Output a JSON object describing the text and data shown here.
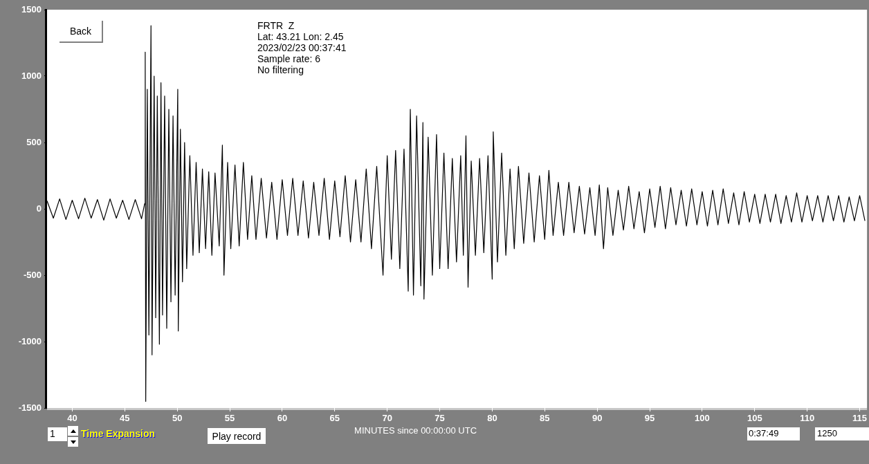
{
  "chart_data": {
    "type": "line",
    "title": "FRTR  Z",
    "xlabel": "MINUTES since 00:00:00 UTC",
    "annotations": [
      "Lat: 43.21 Lon: 2.45",
      "2023/02/23 00:37:41",
      "Sample rate: 6",
      "No filtering",
      "Back",
      "1",
      "Time Expansion",
      "Play record",
      "0:37:49",
      "1250"
    ],
    "xlim": [
      37.6,
      115.7
    ],
    "xticks": [
      40,
      45,
      50,
      55,
      60,
      65,
      70,
      75,
      80,
      85,
      90,
      95,
      100,
      105,
      110,
      115
    ],
    "ylim": [
      -1500,
      1500
    ],
    "yticks": [
      -1500,
      -1000,
      -500,
      0,
      500,
      1000,
      1500
    ],
    "grid": false,
    "legend": false,
    "marker": "none",
    "line_style": "solid",
    "series": [
      {
        "color": "#000000",
        "x": [
          37.6,
          38.2,
          38.8,
          39.4,
          40.0,
          40.6,
          41.2,
          41.8,
          42.4,
          43.0,
          43.6,
          44.2,
          44.8,
          45.4,
          46.0,
          46.6,
          46.9,
          46.95,
          47.0,
          47.15,
          47.3,
          47.5,
          47.6,
          47.8,
          47.95,
          48.1,
          48.3,
          48.45,
          48.6,
          48.8,
          49.0,
          49.2,
          49.4,
          49.6,
          49.8,
          50.05,
          50.1,
          50.3,
          50.5,
          50.7,
          50.9,
          51.2,
          51.5,
          51.8,
          52.1,
          52.4,
          52.7,
          53.0,
          53.3,
          53.6,
          54.0,
          54.3,
          54.45,
          54.8,
          55.1,
          55.5,
          55.9,
          56.3,
          56.7,
          57.1,
          57.5,
          58.0,
          58.5,
          59.0,
          59.5,
          60.0,
          60.5,
          61.0,
          61.5,
          62.0,
          62.5,
          63.0,
          63.5,
          64.0,
          64.5,
          65.0,
          65.5,
          66.0,
          66.5,
          67.0,
          67.5,
          68.0,
          68.5,
          69.0,
          69.6,
          70.0,
          70.4,
          70.8,
          71.2,
          71.6,
          72.0,
          72.2,
          72.5,
          72.8,
          73.2,
          73.4,
          73.5,
          73.9,
          74.3,
          74.7,
          75.0,
          75.4,
          75.8,
          76.2,
          76.6,
          77.0,
          77.25,
          77.5,
          77.7,
          78.0,
          78.4,
          78.8,
          79.2,
          79.6,
          80.0,
          80.1,
          80.5,
          80.9,
          81.3,
          81.7,
          82.1,
          82.5,
          83.0,
          83.5,
          84.0,
          84.5,
          85.0,
          85.4,
          85.8,
          86.3,
          86.8,
          87.3,
          87.8,
          88.3,
          88.8,
          89.3,
          89.8,
          90.2,
          90.6,
          91.0,
          91.5,
          92.0,
          92.5,
          93.0,
          93.5,
          94.0,
          94.5,
          95.0,
          95.5,
          96.0,
          96.5,
          97.0,
          97.5,
          98.0,
          98.5,
          99.0,
          99.5,
          100.0,
          100.5,
          101.0,
          101.5,
          102.0,
          102.5,
          103.0,
          103.5,
          104.0,
          104.5,
          105.0,
          105.5,
          106.0,
          106.5,
          107.0,
          107.5,
          108.0,
          108.5,
          109.0,
          109.5,
          110.0,
          110.5,
          111.0,
          111.5,
          112.0,
          112.5,
          113.0,
          113.5,
          114.0,
          114.5,
          115.0,
          115.5
        ],
        "values": [
          60,
          -70,
          75,
          -80,
          65,
          -75,
          80,
          -70,
          70,
          -85,
          75,
          -70,
          65,
          -80,
          70,
          -75,
          40,
          1180,
          -1450,
          900,
          -950,
          1380,
          -1100,
          1000,
          -820,
          850,
          -1020,
          950,
          -800,
          850,
          -900,
          750,
          -700,
          700,
          -650,
          900,
          -920,
          600,
          -550,
          500,
          -450,
          400,
          -350,
          350,
          -330,
          300,
          -300,
          280,
          -350,
          270,
          -280,
          480,
          -500,
          350,
          -300,
          330,
          -280,
          350,
          -230,
          250,
          -230,
          230,
          -220,
          200,
          -230,
          220,
          -200,
          230,
          -200,
          210,
          -220,
          200,
          -200,
          230,
          -230,
          210,
          -210,
          250,
          -250,
          220,
          -250,
          300,
          -300,
          320,
          -500,
          400,
          -380,
          440,
          -450,
          450,
          -620,
          750,
          -650,
          700,
          -580,
          650,
          -680,
          540,
          -500,
          560,
          -450,
          420,
          -450,
          380,
          -400,
          400,
          -350,
          550,
          -590,
          360,
          -350,
          380,
          -330,
          400,
          -530,
          580,
          -400,
          420,
          -350,
          300,
          -300,
          320,
          -260,
          270,
          -250,
          250,
          -230,
          290,
          -200,
          200,
          -200,
          200,
          -180,
          170,
          -190,
          160,
          -200,
          180,
          -300,
          160,
          -200,
          140,
          -160,
          170,
          -150,
          130,
          -180,
          150,
          -140,
          170,
          -150,
          160,
          -120,
          140,
          -130,
          150,
          -120,
          130,
          -130,
          140,
          -120,
          150,
          -110,
          120,
          -120,
          130,
          -100,
          110,
          -110,
          110,
          -100,
          110,
          -110,
          100,
          -100,
          120,
          -100,
          100,
          -90,
          100,
          -100,
          100,
          -90,
          100,
          -100,
          90,
          -90,
          100,
          -90
        ]
      }
    ]
  }
}
